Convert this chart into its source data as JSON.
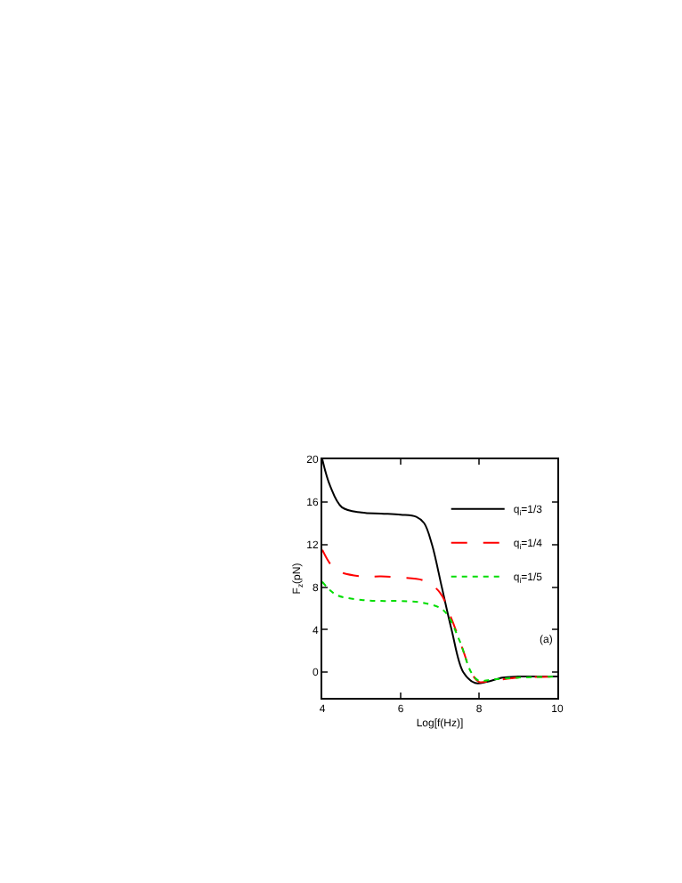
{
  "chart_data": {
    "type": "line",
    "xlabel": "Log[f(Hz)]",
    "ylabel": "F$_{z}$(pN)",
    "xlim": [
      4,
      10
    ],
    "xticks": [
      4,
      6,
      8,
      10
    ],
    "ylim": [
      -2.4,
      20
    ],
    "yticks": [
      0,
      4,
      8,
      12,
      16,
      20
    ],
    "legend": "top right",
    "marker": "none",
    "annotations": [
      "(a)"
    ],
    "series": [
      {
        "name": "q$_{i}$=1/3",
        "color": "#000000",
        "line_style": "solid",
        "x": [
          4,
          4.2,
          4.5,
          5,
          5.5,
          6,
          6.4,
          6.6,
          6.8,
          7.05,
          7.3,
          7.6,
          7.9,
          8.2,
          8.6,
          9,
          10
        ],
        "values": [
          20,
          17.5,
          15.5,
          15,
          14.9,
          14.8,
          14.6,
          14,
          12,
          8,
          4,
          0,
          -1,
          -0.9,
          -0.5,
          -0.4,
          -0.4
        ]
      },
      {
        "name": "q$_{i}$=1/4",
        "color": "#ff0000",
        "line_style": "dashed",
        "x": [
          4,
          4.2,
          4.4,
          5,
          5.5,
          6,
          6.6,
          7,
          7.3,
          7.6,
          7.8,
          8,
          8.3,
          9,
          10
        ],
        "values": [
          11.5,
          10.2,
          9.5,
          9,
          9,
          8.9,
          8.6,
          7.5,
          5,
          2,
          0,
          -0.9,
          -0.8,
          -0.5,
          -0.4
        ]
      },
      {
        "name": "q$_{i}$=1/5",
        "color": "#00dd00",
        "line_style": "dotted",
        "x": [
          4,
          4.2,
          4.4,
          5,
          5.5,
          6,
          6.6,
          7.1,
          7.5,
          7.8,
          8,
          8.3,
          9,
          10
        ],
        "values": [
          8.5,
          7.7,
          7.2,
          6.8,
          6.7,
          6.7,
          6.5,
          5.8,
          3,
          0,
          -0.8,
          -0.7,
          -0.5,
          -0.4
        ]
      }
    ]
  }
}
